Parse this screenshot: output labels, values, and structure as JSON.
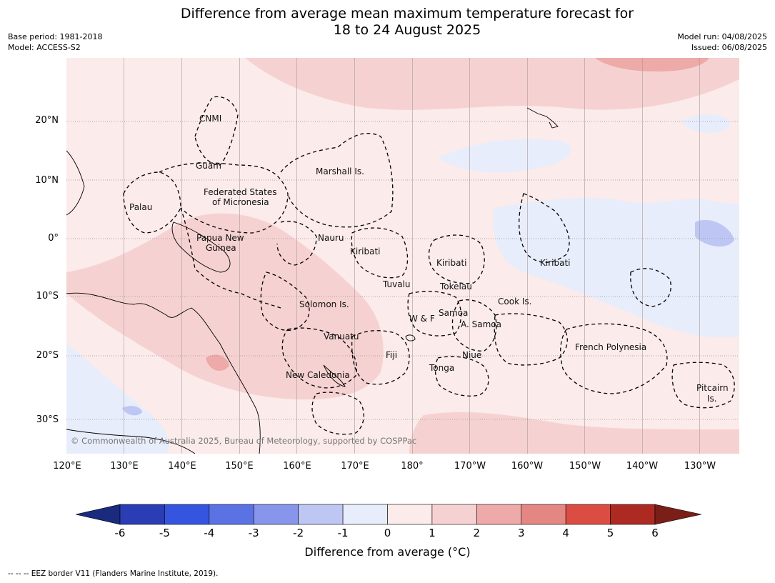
{
  "title": {
    "line1": "Difference from average mean maximum temperature forecast for",
    "line2": "18 to 24 August 2025"
  },
  "meta": {
    "base_period": "Base period: 1981-2018",
    "model": "Model: ACCESS-S2",
    "model_run": "Model run: 04/08/2025",
    "issued": "Issued: 06/08/2025"
  },
  "axes": {
    "lat_labels": [
      "20°N",
      "10°N",
      "0°",
      "10°S",
      "20°S",
      "30°S"
    ],
    "lon_labels": [
      "120°E",
      "130°E",
      "140°E",
      "150°E",
      "160°E",
      "170°E",
      "180°",
      "170°W",
      "160°W",
      "150°W",
      "140°W",
      "130°W"
    ]
  },
  "regions": [
    "CNMI",
    "Guam",
    "Marshall Is.",
    "Federated States",
    "of Micronesia",
    "Palau",
    "Papua New",
    "Guinea",
    "Nauru",
    "Kiribati",
    "Kiribati",
    "Kiribati",
    "Tuvalu",
    "Tokelau",
    "Cook Is.",
    "Solomon Is.",
    "Samoa",
    "W & F",
    "A. Samoa",
    "Vanuatu",
    "Fiji",
    "Niue",
    "French Polynesia",
    "Tonga",
    "New Caledonia",
    "Pitcairn",
    "Is."
  ],
  "copyright": "© Commonwealth of Australia 2025, Bureau of Meteorology, supported by COSPPac",
  "colorbar": {
    "ticks": [
      "-6",
      "-5",
      "-4",
      "-3",
      "-2",
      "-1",
      "0",
      "1",
      "2",
      "3",
      "4",
      "5",
      "6"
    ],
    "colors": [
      "#2a3db5",
      "#3555e0",
      "#5a72e4",
      "#8796ea",
      "#bec7f4",
      "#e8edfb",
      "#fbebea",
      "#f5d2d1",
      "#edaaa8",
      "#e48682",
      "#db4d43",
      "#ad2a22"
    ],
    "under_color": "#1a2a7e",
    "over_color": "#7a1e18",
    "label": "Difference from average (°C)"
  },
  "footnote": "--  --  -- EEZ border V11 (Flanders Marine Institute, 2019)."
}
